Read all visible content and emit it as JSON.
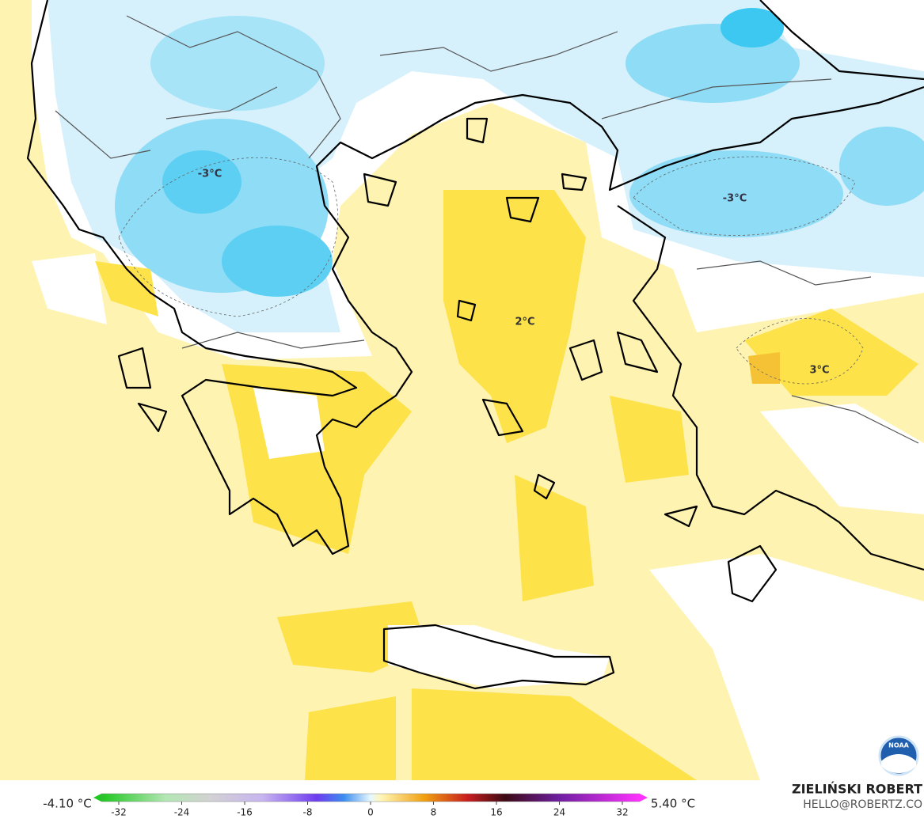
{
  "map": {
    "labels": [
      "-3°C",
      "-3°C",
      "2°C",
      "3°C"
    ]
  },
  "colorbar": {
    "min_label": "-4.10 °C",
    "max_label": "5.40 °C",
    "lim": [
      -32,
      32
    ],
    "ticks": [
      -32,
      -24,
      -16,
      -8,
      0,
      8,
      16,
      24,
      32
    ]
  },
  "credit": {
    "author": "ZIELIŃSKI ROBERT",
    "contact": "HELLO@ROBERTZ.CO",
    "logo": "NOAA"
  }
}
